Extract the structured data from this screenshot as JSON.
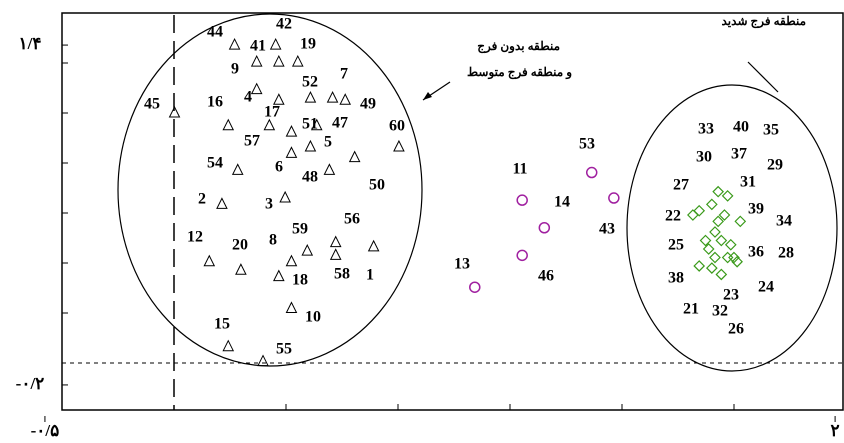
{
  "chart_data": {
    "type": "scatter",
    "annotations": [
      "منطقه بدون فرج",
      "و منطقه فرج متوسط",
      "منطقه فرج شدید"
    ],
    "xlim": [
      -0.446,
      2.025
    ],
    "ylim": [
      -0.318,
      1.551
    ],
    "xticks": [
      {
        "value": -0.5,
        "label": "-۰/۵"
      },
      {
        "value": 2,
        "label": "۲"
      }
    ],
    "yticks": [
      {
        "value": 1.4,
        "label": "۱/۴"
      },
      {
        "value": -0.2,
        "label": "-۰/۲"
      }
    ],
    "series": [
      {
        "marker": "triangle",
        "color": "#000000",
        "labels": [
          "45",
          "44",
          "42",
          "41",
          "19",
          "9",
          "7",
          "52",
          "4",
          "16",
          "17",
          "49",
          "51",
          "47",
          "60",
          "57",
          "5",
          "6",
          "48",
          "54",
          "50",
          "2",
          "3",
          "56",
          "59",
          "8",
          "12",
          "20",
          "1",
          "58",
          "18",
          "10",
          "15",
          "55"
        ],
        "x": [
          -0.09,
          0.1,
          0.23,
          0.17,
          0.3,
          0.24,
          0.41,
          0.34,
          0.17,
          0.08,
          0.24,
          0.45,
          0.28,
          0.36,
          0.62,
          0.21,
          0.34,
          0.28,
          0.4,
          0.11,
          0.48,
          0.06,
          0.26,
          0.42,
          0.33,
          0.28,
          0.02,
          0.12,
          0.54,
          0.42,
          0.24,
          0.28,
          0.08,
          0.19
        ],
        "y": [
          1.08,
          1.4,
          1.4,
          1.32,
          1.32,
          1.32,
          1.15,
          1.15,
          1.19,
          1.02,
          1.14,
          1.14,
          0.99,
          1.02,
          0.92,
          1.02,
          0.92,
          0.89,
          0.81,
          0.81,
          0.87,
          0.65,
          0.68,
          0.47,
          0.43,
          0.38,
          0.38,
          0.34,
          0.45,
          0.41,
          0.31,
          0.16,
          -0.02,
          -0.09
        ]
      },
      {
        "marker": "circle",
        "color": "#a020a0",
        "labels": [
          "53",
          "11",
          "14",
          "43",
          "13",
          "46"
        ],
        "x": [
          1.23,
          1.01,
          1.08,
          1.3,
          0.86,
          1.01
        ],
        "y": [
          0.8,
          0.67,
          0.54,
          0.68,
          0.26,
          0.41
        ]
      },
      {
        "marker": "diamond",
        "color": "#3a9a1a",
        "labels": [
          "33",
          "40",
          "35",
          "30",
          "37",
          "29",
          "27",
          "31",
          "22",
          "39",
          "34",
          "25",
          "36",
          "28",
          "38",
          "23",
          "24",
          "21",
          "32",
          "26"
        ],
        "x": [
          1.63,
          1.66,
          1.7,
          1.61,
          1.65,
          1.63,
          1.57,
          1.55,
          1.62,
          1.64,
          1.67,
          1.59,
          1.68,
          1.69,
          1.57,
          1.64,
          1.66,
          1.61,
          1.6,
          1.62
        ],
        "y": [
          0.71,
          0.69,
          0.57,
          0.65,
          0.6,
          0.57,
          0.62,
          0.6,
          0.52,
          0.48,
          0.46,
          0.48,
          0.4,
          0.38,
          0.36,
          0.32,
          0.4,
          0.35,
          0.44,
          0.4
        ]
      }
    ]
  }
}
